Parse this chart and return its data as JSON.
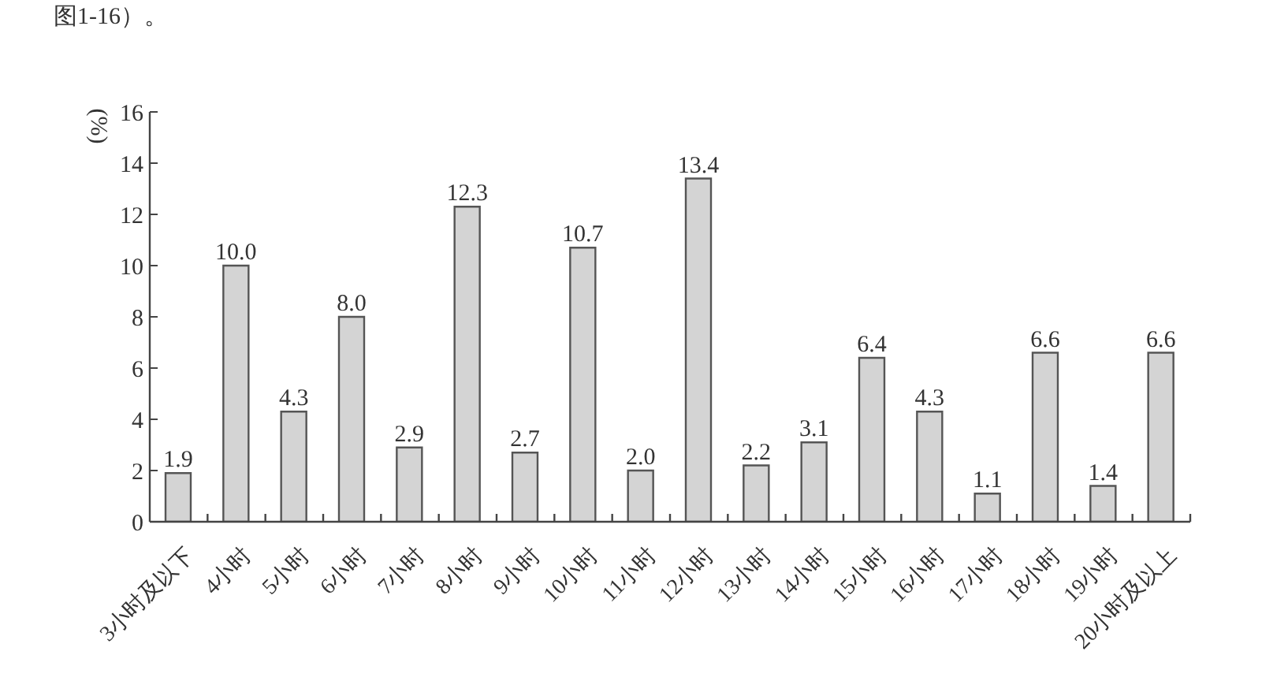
{
  "chart_data": {
    "type": "bar",
    "annotations": [
      "图1-16）。"
    ],
    "ylabel": "(%)",
    "categories": [
      "3小时及以下",
      "4小时",
      "5小时",
      "6小时",
      "7小时",
      "8小时",
      "9小时",
      "10小时",
      "11小时",
      "12小时",
      "13小时",
      "14小时",
      "15小时",
      "16小时",
      "17小时",
      "18小时",
      "19小时",
      "20小时及以上"
    ],
    "values": [
      1.9,
      10.0,
      4.3,
      8.0,
      2.9,
      12.3,
      2.7,
      10.7,
      2.0,
      13.4,
      2.2,
      3.1,
      6.4,
      4.3,
      1.1,
      6.6,
      1.4,
      6.6
    ],
    "value_labels": [
      "1.9",
      "10.0",
      "4.3",
      "8.0",
      "2.9",
      "12.3",
      "2.7",
      "10.7",
      "2.0",
      "13.4",
      "2.2",
      "3.1",
      "6.4",
      "4.3",
      "1.1",
      "6.6",
      "1.4",
      "6.6"
    ],
    "color": "#d4d4d4",
    "ylim": [
      0,
      16
    ],
    "yticks": [
      0,
      2,
      4,
      6,
      8,
      10,
      12,
      14,
      16
    ]
  }
}
